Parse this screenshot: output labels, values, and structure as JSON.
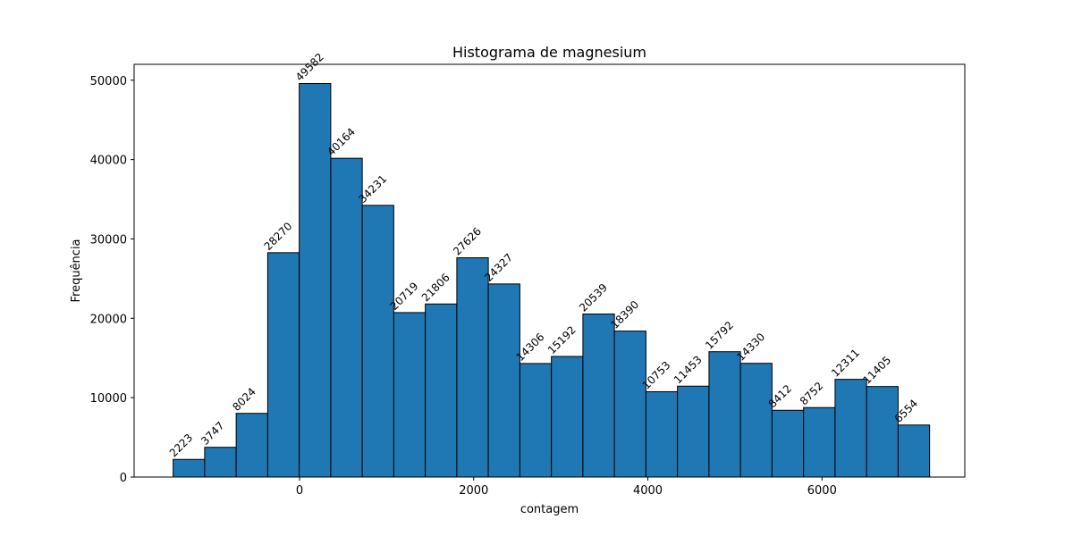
{
  "chart_data": {
    "type": "bar",
    "title": "Histograma de magnesium",
    "xlabel": "contagem",
    "ylabel": "Frequência",
    "bin_edges": [
      -1452,
      -1090,
      -728,
      -366,
      -4,
      358,
      720,
      1082,
      1444,
      1806,
      2168,
      2530,
      2892,
      3254,
      3616,
      3978,
      4340,
      4702,
      5064,
      5426,
      5788,
      6150,
      6512,
      6874,
      7236
    ],
    "values": [
      2223,
      3747,
      8024,
      28270,
      49582,
      40164,
      34231,
      20719,
      21806,
      27626,
      24327,
      14306,
      15192,
      20539,
      18390,
      10753,
      11453,
      15792,
      14330,
      8412,
      8752,
      12311,
      11405,
      6554
    ],
    "xlim": [
      -1900,
      7640
    ],
    "ylim": [
      0,
      52000
    ],
    "x_ticks": [
      0,
      2000,
      4000,
      6000
    ],
    "x_tick_labels": [
      "0",
      "2000",
      "4000",
      "6000"
    ],
    "y_ticks": [
      0,
      10000,
      20000,
      30000,
      40000,
      50000
    ],
    "y_tick_labels": [
      "0",
      "10000",
      "20000",
      "30000",
      "40000",
      "50000"
    ],
    "bar_color": "#1f77b4",
    "edge_color": "#000000",
    "grid": false
  }
}
